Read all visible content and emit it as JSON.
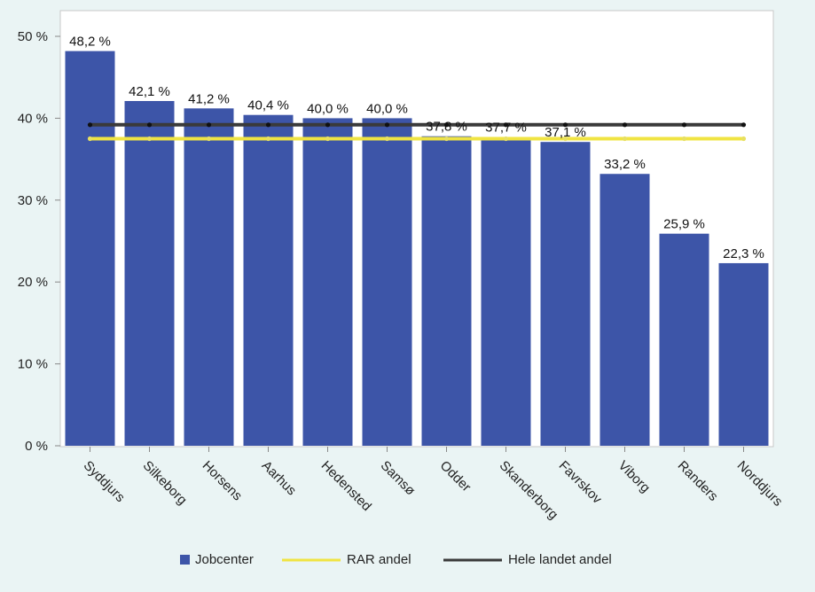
{
  "chart_data": {
    "type": "bar",
    "categories": [
      "Syddjurs",
      "Silkeborg",
      "Horsens",
      "Aarhus",
      "Hedensted",
      "Samsø",
      "Odder",
      "Skanderborg",
      "Favrskov",
      "Viborg",
      "Randers",
      "Norddjurs"
    ],
    "series": [
      {
        "name": "Jobcenter",
        "type": "bar",
        "color": "#3d55a8",
        "values": [
          48.2,
          42.1,
          41.2,
          40.4,
          40.0,
          40.0,
          37.8,
          37.7,
          37.1,
          33.2,
          25.9,
          22.3
        ],
        "labels": [
          "48,2 %",
          "42,1 %",
          "41,2 %",
          "40,4 %",
          "40,0 %",
          "40,0 %",
          "37,8 %",
          "37,7 %",
          "37,1 %",
          "33,2 %",
          "25,9 %",
          "22,3 %"
        ]
      },
      {
        "name": "RAR andel",
        "type": "line",
        "color": "#f0e442",
        "value": 37.5
      },
      {
        "name": "Hele landet andel",
        "type": "line",
        "color": "#3a3a3a",
        "value": 39.2
      }
    ],
    "ylim": [
      0,
      50
    ],
    "yticks": [
      0,
      10,
      20,
      30,
      40,
      50
    ],
    "ytick_labels": [
      "0 %",
      "10 %",
      "20 %",
      "30 %",
      "40 %",
      "50 %"
    ],
    "grid": false,
    "legend_position": "bottom"
  }
}
